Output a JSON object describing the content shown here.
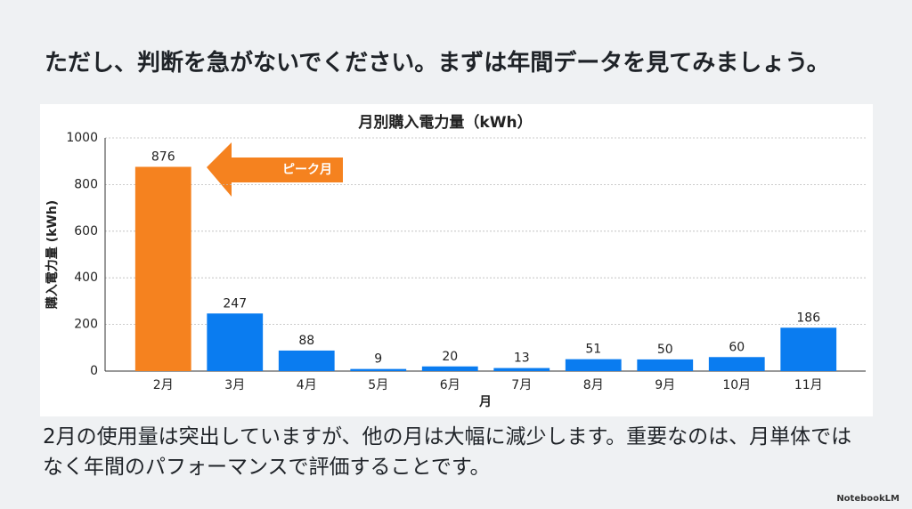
{
  "heading": "ただし、判断を急がないでください。まずは年間データを見てみましょう。",
  "chart_data": {
    "type": "bar",
    "title": "月別購入電力量（kWh）",
    "x_label": "月",
    "y_label": "購入電力量 (kWh)",
    "categories": [
      "2月",
      "3月",
      "4月",
      "5月",
      "6月",
      "7月",
      "8月",
      "9月",
      "10月",
      "11月"
    ],
    "values": [
      876,
      247,
      88,
      9,
      20,
      13,
      51,
      50,
      60,
      186
    ],
    "colors": [
      "#f5821f",
      "#0a7cf0",
      "#0a7cf0",
      "#0a7cf0",
      "#0a7cf0",
      "#0a7cf0",
      "#0a7cf0",
      "#0a7cf0",
      "#0a7cf0",
      "#0a7cf0"
    ],
    "ylim": [
      0,
      1000
    ],
    "yticks": [
      0,
      200,
      400,
      600,
      800,
      1000
    ],
    "grid": true,
    "annotation": "ピーク月"
  },
  "caption": "2月の使用量は突出していますが、他の月は大幅に減少します。重要なのは、月単体ではなく年間のパフォーマンスで評価することです。",
  "brand": "NotebookLM"
}
